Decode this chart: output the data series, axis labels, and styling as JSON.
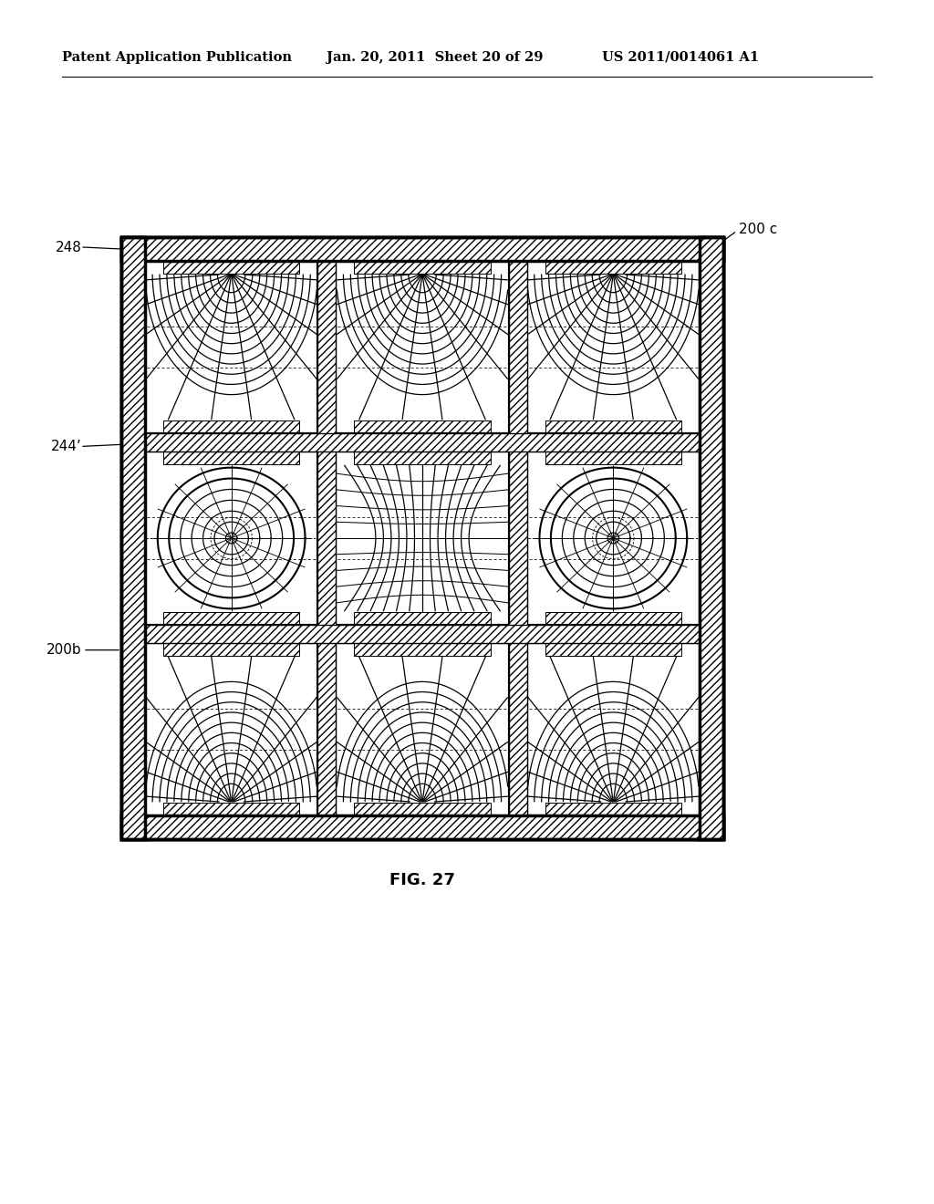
{
  "title_left": "Patent Application Publication",
  "title_center": "Jan. 20, 2011  Sheet 20 of 29",
  "title_right": "US 2011/0014061 A1",
  "fig_label": "FIG. 27",
  "label_200c": "200 c",
  "label_248": "248",
  "label_244": "244’",
  "label_200b": "200b",
  "bg_color": "#ffffff",
  "line_color": "#000000"
}
